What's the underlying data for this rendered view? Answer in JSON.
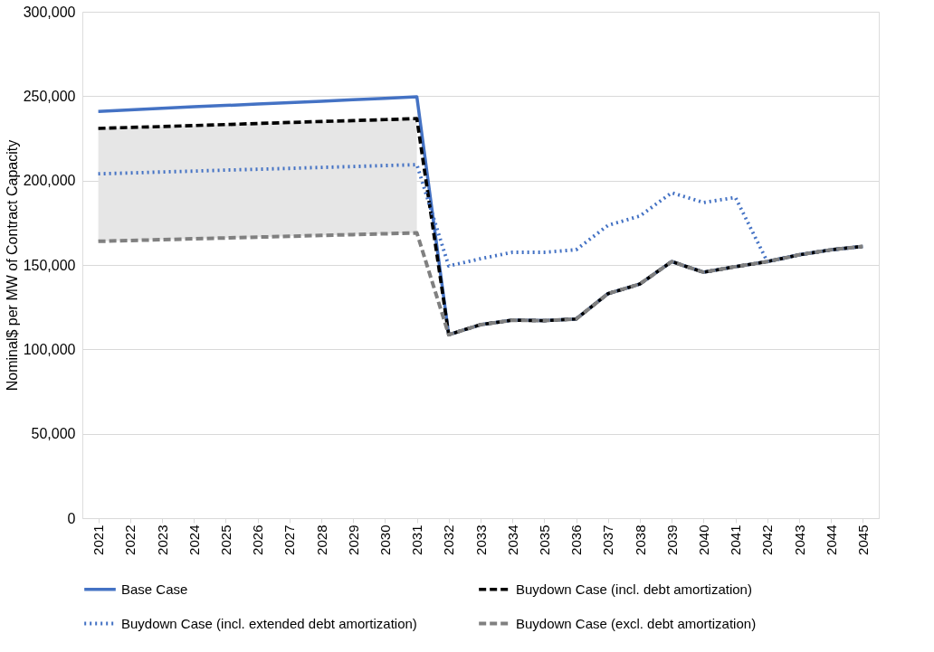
{
  "chart_data": {
    "type": "line",
    "ylabel": "Nominal$ per MW of Contract Capacity",
    "categories": [
      "2021",
      "2022",
      "2023",
      "2024",
      "2025",
      "2026",
      "2027",
      "2028",
      "2029",
      "2030",
      "2031",
      "2032",
      "2033",
      "2034",
      "2035",
      "2036",
      "2037",
      "2038",
      "2039",
      "2040",
      "2041",
      "2042",
      "2043",
      "2044",
      "2045"
    ],
    "series": [
      {
        "name": "Base Case",
        "color": "#4472c4",
        "line_style": "solid",
        "values": [
          241000,
          241900,
          242800,
          243700,
          244500,
          245400,
          246200,
          247000,
          247900,
          248700,
          249600,
          108700,
          114600,
          117300,
          117000,
          118000,
          133000,
          138700,
          152000,
          145700,
          149000,
          152000,
          156000,
          159000,
          161000
        ]
      },
      {
        "name": "Buydown Case (incl. debt amortization)",
        "color": "#000000",
        "line_style": "dashed",
        "values": [
          230900,
          231500,
          232000,
          232600,
          233200,
          233800,
          234400,
          235000,
          235500,
          236100,
          236700,
          108700,
          114600,
          117300,
          117000,
          118000,
          133000,
          138700,
          152000,
          145700,
          149000,
          152000,
          156000,
          159000,
          161000
        ],
        "lower": [
          164000,
          164500,
          165000,
          165500,
          166000,
          166500,
          167000,
          167500,
          168000,
          168500,
          169000,
          null,
          null,
          null,
          null,
          null,
          null,
          null,
          null,
          null,
          null,
          null,
          null,
          null,
          null
        ],
        "upper": [
          230900,
          231500,
          232000,
          232600,
          233200,
          233800,
          234400,
          235000,
          235500,
          236100,
          236700,
          null,
          null,
          null,
          null,
          null,
          null,
          null,
          null,
          null,
          null,
          null,
          null,
          null,
          null
        ]
      },
      {
        "name": "Buydown Case (incl. extended debt amortization)",
        "color": "#4472c4",
        "line_style": "dotted",
        "values": [
          204000,
          204500,
          205100,
          205600,
          206200,
          206700,
          207200,
          207800,
          208300,
          208900,
          209400,
          149400,
          153700,
          157500,
          157500,
          159000,
          173500,
          179000,
          192800,
          187000,
          190000,
          152000,
          156000,
          159000,
          161000
        ]
      },
      {
        "name": "Buydown Case (excl. debt amortization)",
        "color": "#808080",
        "line_style": "dashed",
        "values": [
          164000,
          164500,
          165000,
          165500,
          166000,
          166500,
          167000,
          167500,
          168000,
          168500,
          169000,
          108700,
          114600,
          117300,
          117000,
          118000,
          133000,
          138700,
          152000,
          145700,
          149000,
          152000,
          156000,
          159000,
          161000
        ]
      }
    ],
    "ylim": [
      0,
      300000
    ],
    "yticks": [
      0,
      {
        "value": 50000,
        "label": "50,000"
      },
      {
        "value": 100000,
        "label": "100,000"
      },
      {
        "value": 150000,
        "label": "150,000"
      },
      {
        "value": 200000,
        "label": "200,000"
      },
      {
        "value": 250000,
        "label": "250,000"
      },
      {
        "value": 300000,
        "label": "300,000"
      }
    ],
    "grid": "y",
    "legend": "bottom"
  }
}
